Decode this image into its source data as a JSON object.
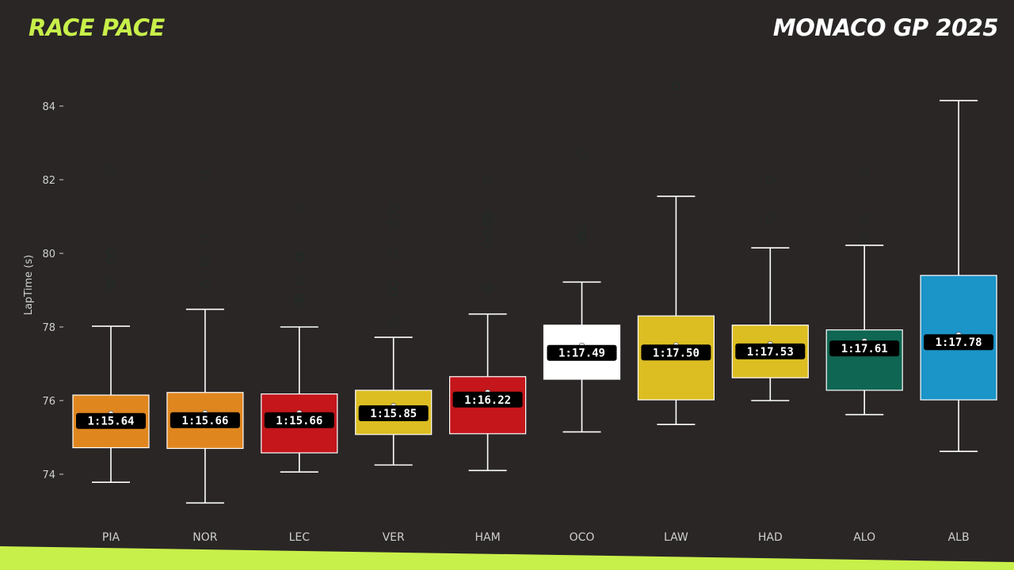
{
  "header": {
    "left_title": "RACE PACE",
    "right_title": "MONACO GP 2025"
  },
  "colors": {
    "accent": "#c8f04a",
    "background": "#2a2626",
    "whisker": "#ffffff",
    "outlier": "#1f2a22"
  },
  "chart_data": {
    "type": "box",
    "title": "",
    "xlabel": "",
    "ylabel": "LapTime (s)",
    "ylim": [
      72.8,
      85.5
    ],
    "yticks": [
      74,
      76,
      78,
      80,
      82,
      84
    ],
    "grid": false,
    "categories": [
      "PIA",
      "NOR",
      "LEC",
      "VER",
      "HAM",
      "OCO",
      "LAW",
      "HAD",
      "ALO",
      "ALB"
    ],
    "boxes": [
      {
        "driver": "PIA",
        "color": "#e0861f",
        "whisker_low": 73.78,
        "q1": 74.72,
        "median": 75.64,
        "q3": 76.15,
        "whisker_high": 78.02,
        "label": "1:15.64",
        "outliers": [
          82.28,
          80.05,
          79.82,
          79.22,
          79.12
        ]
      },
      {
        "driver": "NOR",
        "color": "#e0861f",
        "whisker_low": 73.22,
        "q1": 74.7,
        "median": 75.66,
        "q3": 76.22,
        "whisker_high": 78.48,
        "label": "1:15.66",
        "outliers": [
          82.15,
          80.4,
          79.78,
          79.15
        ]
      },
      {
        "driver": "LEC",
        "color": "#c4161b",
        "whisker_low": 74.06,
        "q1": 74.58,
        "median": 75.66,
        "q3": 76.18,
        "whisker_high": 78.0,
        "label": "1:15.66",
        "outliers": [
          81.22,
          79.92,
          79.88,
          79.25,
          78.78,
          78.65
        ]
      },
      {
        "driver": "VER",
        "color": "#dcbd22",
        "whisker_low": 74.25,
        "q1": 75.08,
        "median": 75.85,
        "q3": 76.28,
        "whisker_high": 77.72,
        "label": "1:15.85",
        "outliers": [
          81.22,
          80.8,
          80.0,
          79.15,
          78.95,
          78.15
        ]
      },
      {
        "driver": "HAM",
        "color": "#c4161b",
        "whisker_low": 74.1,
        "q1": 75.1,
        "median": 76.22,
        "q3": 76.65,
        "whisker_high": 78.35,
        "label": "1:16.22",
        "outliers": [
          82.02,
          81.02,
          80.88,
          80.52,
          80.25,
          79.05
        ]
      },
      {
        "driver": "OCO",
        "color": "#ffffff",
        "whisker_low": 75.15,
        "q1": 76.58,
        "median": 77.49,
        "q3": 78.05,
        "whisker_high": 79.22,
        "label": "1:17.49",
        "outliers": [
          82.7,
          80.65,
          80.48,
          80.35
        ]
      },
      {
        "driver": "LAW",
        "color": "#dcbd22",
        "whisker_low": 75.35,
        "q1": 76.02,
        "median": 77.5,
        "q3": 78.3,
        "whisker_high": 81.55,
        "label": "1:17.50",
        "outliers": [
          84.55
        ]
      },
      {
        "driver": "HAD",
        "color": "#dcbd22",
        "whisker_low": 76.0,
        "q1": 76.62,
        "median": 77.53,
        "q3": 78.05,
        "whisker_high": 80.15,
        "label": "1:17.53",
        "outliers": [
          81.98,
          80.95
        ]
      },
      {
        "driver": "ALO",
        "color": "#0f6652",
        "whisker_low": 75.62,
        "q1": 76.28,
        "median": 77.61,
        "q3": 77.92,
        "whisker_high": 80.22,
        "label": "1:17.61",
        "outliers": [
          82.18,
          80.95,
          80.42
        ]
      },
      {
        "driver": "ALB",
        "color": "#1b94c8",
        "whisker_low": 74.62,
        "q1": 76.02,
        "median": 77.78,
        "q3": 79.4,
        "whisker_high": 84.15,
        "label": "1:17.78",
        "outliers": []
      }
    ]
  }
}
